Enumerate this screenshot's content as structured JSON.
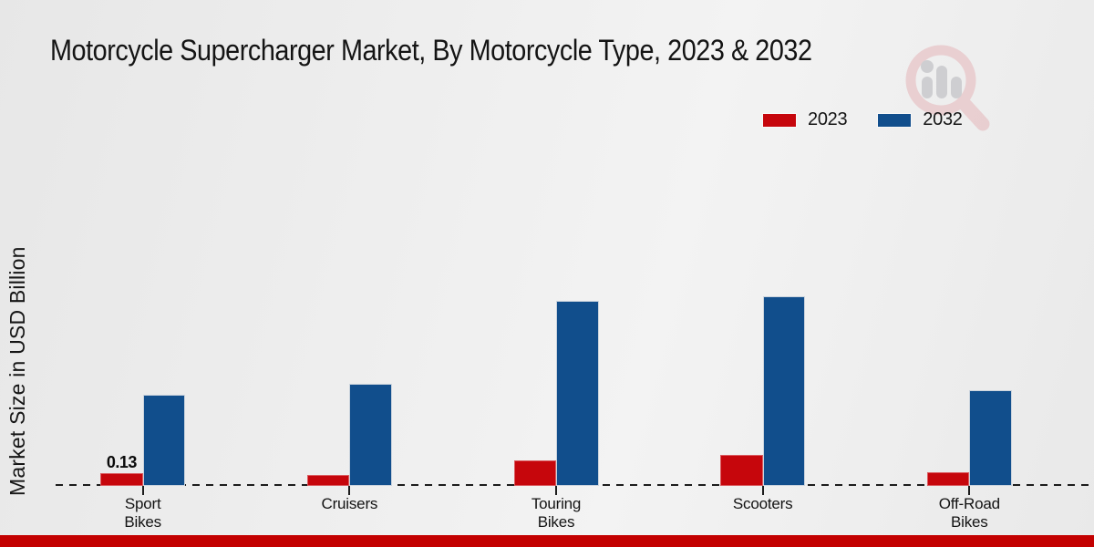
{
  "title": "Motorcycle Supercharger Market, By Motorcycle Type, 2023 & 2032",
  "y_axis_label": "Market Size in USD Billion",
  "legend": {
    "items": [
      {
        "label": "2023",
        "color": "#c6060c"
      },
      {
        "label": "2032",
        "color": "#114e8c"
      }
    ]
  },
  "colors": {
    "bar_2023": "#c6060c",
    "bar_2032": "#114e8c",
    "footer_strip": "#c30000",
    "baseline": "#1c1c1c",
    "background": "#ededed",
    "title_text": "#141414"
  },
  "watermark": {
    "name": "market-research-magnifier-logo"
  },
  "footer": {},
  "chart_data": {
    "type": "bar",
    "categories": [
      "Sport Bikes",
      "Cruisers",
      "Touring Bikes",
      "Scooters",
      "Off-Road Bikes"
    ],
    "category_display": [
      "Sport\nBikes",
      "Cruisers",
      "Touring\nBikes",
      "Scooters",
      "Off-Road\nBikes"
    ],
    "series": [
      {
        "name": "2023",
        "color": "#c6060c",
        "values": [
          0.13,
          0.11,
          0.26,
          0.32,
          0.14
        ]
      },
      {
        "name": "2032",
        "color": "#114e8c",
        "values": [
          0.93,
          1.04,
          1.89,
          1.94,
          0.98
        ]
      }
    ],
    "title": "Motorcycle Supercharger Market, By Motorcycle Type, 2023 & 2032",
    "xlabel": "",
    "ylabel": "Market Size in USD Billion",
    "ylim": [
      0,
      2.2
    ],
    "grid": false,
    "legend_position": "top-right",
    "baseline_style": "dashed",
    "annotations": [
      {
        "category_index": 0,
        "series": "2023",
        "text": "0.13"
      }
    ]
  }
}
